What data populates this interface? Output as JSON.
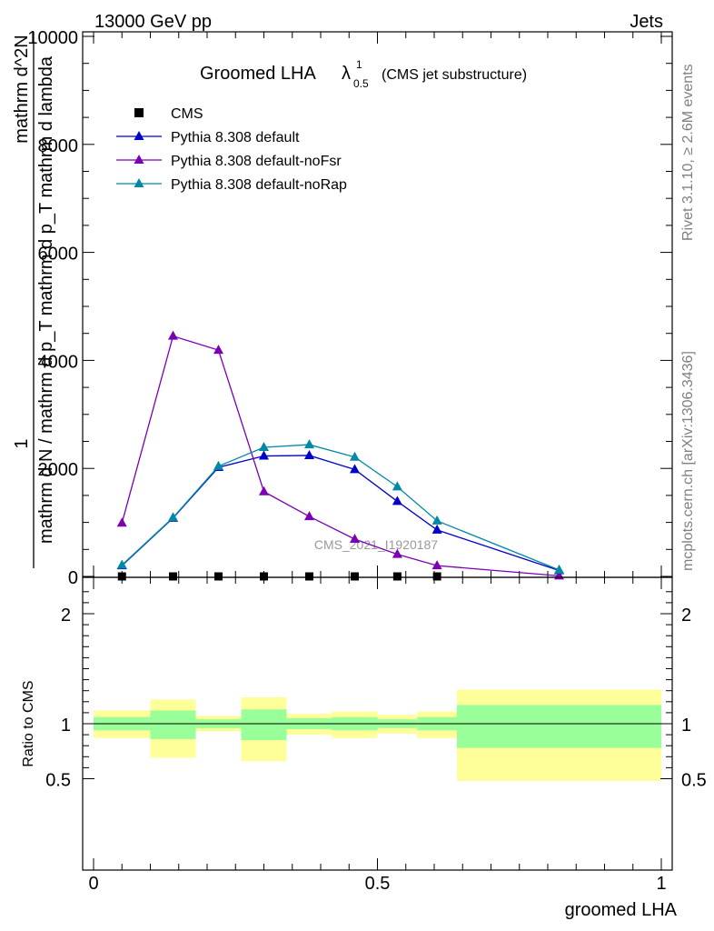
{
  "header": {
    "energy_label": "13000 GeV pp",
    "process_label": "Jets"
  },
  "side_labels": {
    "rivet": "Rivet 3.1.10, ≥ 2.6M events",
    "mcplots": "mcplots.cern.ch [arXiv:1306.3436]"
  },
  "watermark": "CMS_2021_I1920187",
  "chart_data": [
    {
      "type": "line",
      "title_main": "Groomed LHA",
      "title_lambda": "λ",
      "title_sup": "1",
      "title_sub": "0.5",
      "title_extra": "(CMS jet substructure)",
      "ylabel_numerator": "1",
      "ylabel_denominator": "mathrm d N / mathrm d p_T mathrm d p_T mathrm d lambda",
      "ylabel_overlay": "mathrm d^2N",
      "xlim": [
        0,
        1
      ],
      "ylim": [
        0,
        10000
      ],
      "y_ticks": [
        "0",
        "2000",
        "4000",
        "6000",
        "8000",
        "10000"
      ],
      "x": [
        0.05,
        0.14,
        0.22,
        0.3,
        0.38,
        0.46,
        0.535,
        0.605,
        0.82
      ],
      "series": [
        {
          "name": "CMS",
          "color": "#000000",
          "marker": "square",
          "x": [
            0.05,
            0.14,
            0.22,
            0.3,
            0.38,
            0.46,
            0.535,
            0.605
          ],
          "values": [
            0,
            0,
            0,
            0,
            0,
            0,
            0,
            0
          ]
        },
        {
          "name": "Pythia 8.308 default",
          "color": "#0000cc",
          "marker": "triangle",
          "values": [
            200,
            1080,
            2020,
            2230,
            2240,
            1980,
            1390,
            860,
            110
          ]
        },
        {
          "name": "Pythia 8.308 default-noFsr",
          "color": "#7b00b4",
          "marker": "triangle",
          "values": [
            990,
            4450,
            4190,
            1570,
            1110,
            690,
            410,
            200,
            10
          ]
        },
        {
          "name": "Pythia 8.308 default-noRap",
          "color": "#0089a5",
          "marker": "triangle",
          "values": [
            210,
            1090,
            2040,
            2390,
            2440,
            2210,
            1660,
            1030,
            120
          ]
        }
      ],
      "legend_position": "top-left"
    },
    {
      "type": "area",
      "ylabel": "Ratio to CMS",
      "xlabel": "groomed LHA",
      "xlim": [
        0,
        1
      ],
      "ylim": [
        0.4,
        2.3
      ],
      "x_ticks": [
        "0",
        "0.5",
        "1"
      ],
      "y_ticks": [
        "0.5",
        "1",
        "2"
      ],
      "reference_line": 1,
      "bins": [
        {
          "lo": 0.0,
          "hi": 0.1,
          "inner": [
            0.94,
            1.06
          ],
          "outer": [
            0.87,
            1.12
          ]
        },
        {
          "lo": 0.1,
          "hi": 0.18,
          "inner": [
            0.86,
            1.12
          ],
          "outer": [
            0.69,
            1.22
          ]
        },
        {
          "lo": 0.18,
          "hi": 0.26,
          "inner": [
            0.96,
            1.04
          ],
          "outer": [
            0.93,
            1.07
          ]
        },
        {
          "lo": 0.26,
          "hi": 0.34,
          "inner": [
            0.85,
            1.13
          ],
          "outer": [
            0.66,
            1.24
          ]
        },
        {
          "lo": 0.34,
          "hi": 0.42,
          "inner": [
            0.95,
            1.05
          ],
          "outer": [
            0.9,
            1.09
          ]
        },
        {
          "lo": 0.42,
          "hi": 0.5,
          "inner": [
            0.94,
            1.06
          ],
          "outer": [
            0.87,
            1.11
          ]
        },
        {
          "lo": 0.5,
          "hi": 0.57,
          "inner": [
            0.96,
            1.04
          ],
          "outer": [
            0.91,
            1.08
          ]
        },
        {
          "lo": 0.57,
          "hi": 0.64,
          "inner": [
            0.94,
            1.06
          ],
          "outer": [
            0.87,
            1.11
          ]
        },
        {
          "lo": 0.64,
          "hi": 1.0,
          "inner": [
            0.78,
            1.17
          ],
          "outer": [
            0.48,
            1.31
          ]
        }
      ],
      "band_colors": {
        "inner": "#99ff99",
        "outer": "#ffff99"
      }
    }
  ]
}
